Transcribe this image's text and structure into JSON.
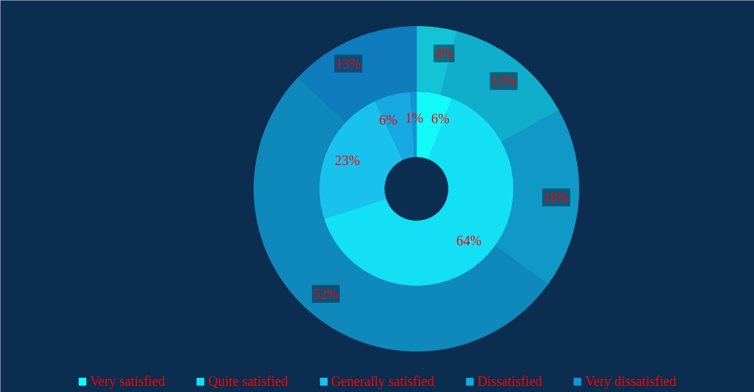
{
  "chart_data": {
    "type": "donut",
    "categories": [
      "Very satisfied",
      "Quite satisfied",
      "Generally satisfied",
      "Dissatisfied",
      "Very dissatisfied"
    ],
    "series": [
      {
        "values": [
          6,
          64,
          23,
          6,
          1
        ],
        "colors": [
          "#12fafa",
          "#14e0f5",
          "#18c2ec",
          "#17a9e2",
          "#1592d6"
        ],
        "value_labels": [
          "6%",
          "64%",
          "23%",
          "6%",
          "1%"
        ]
      },
      {
        "values": [
          4,
          13,
          18,
          52,
          13
        ],
        "colors": [
          "#12c4d6",
          "#11aecc",
          "#1098c6",
          "#0f88bc",
          "#0f7cbe"
        ],
        "value_labels": [
          "4%",
          "13%",
          "18%",
          "52%",
          "13%"
        ]
      }
    ],
    "legend": "bottom"
  }
}
